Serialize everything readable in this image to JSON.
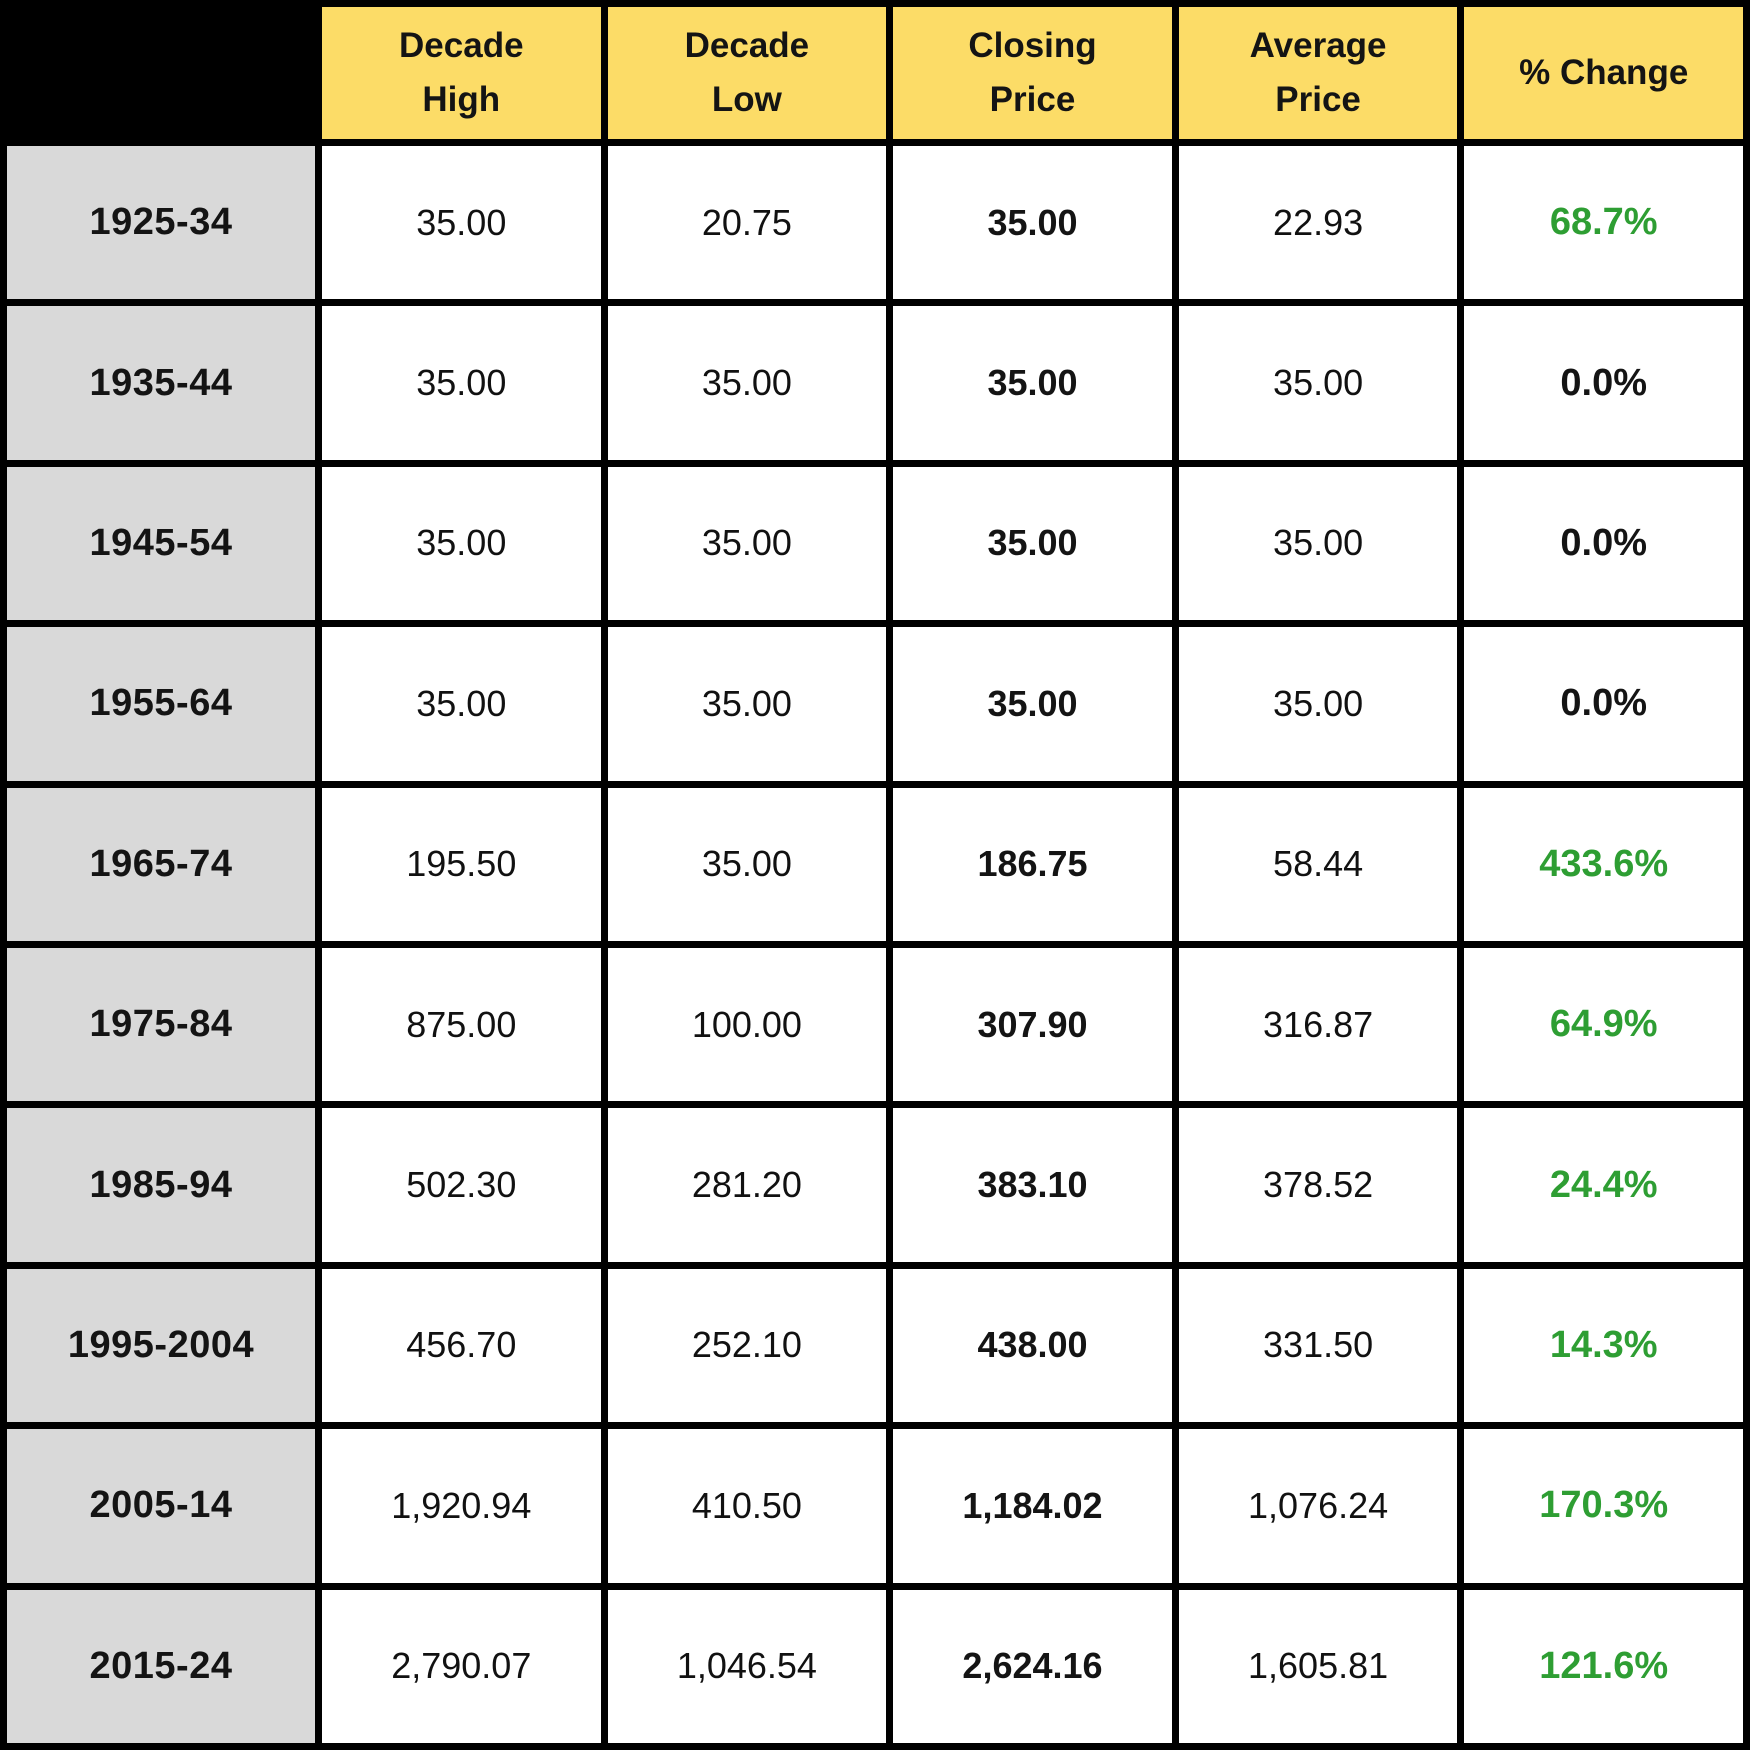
{
  "table": {
    "corner_label": "",
    "column_headers": [
      {
        "key": "decade-high",
        "label": "Decade\nHigh"
      },
      {
        "key": "decade-low",
        "label": "Decade\nLow"
      },
      {
        "key": "closing-price",
        "label": "Closing\nPrice"
      },
      {
        "key": "average-price",
        "label": "Average\nPrice"
      },
      {
        "key": "pct-change",
        "label": "% Change"
      }
    ],
    "rows": [
      {
        "label": "1925-34",
        "decade_high": "35.00",
        "decade_low": "20.75",
        "closing_price": "35.00",
        "average_price": "22.93",
        "pct_change": "68.7%",
        "pct_positive": true
      },
      {
        "label": "1935-44",
        "decade_high": "35.00",
        "decade_low": "35.00",
        "closing_price": "35.00",
        "average_price": "35.00",
        "pct_change": "0.0%",
        "pct_positive": false
      },
      {
        "label": "1945-54",
        "decade_high": "35.00",
        "decade_low": "35.00",
        "closing_price": "35.00",
        "average_price": "35.00",
        "pct_change": "0.0%",
        "pct_positive": false
      },
      {
        "label": "1955-64",
        "decade_high": "35.00",
        "decade_low": "35.00",
        "closing_price": "35.00",
        "average_price": "35.00",
        "pct_change": "0.0%",
        "pct_positive": false
      },
      {
        "label": "1965-74",
        "decade_high": "195.50",
        "decade_low": "35.00",
        "closing_price": "186.75",
        "average_price": "58.44",
        "pct_change": "433.6%",
        "pct_positive": true
      },
      {
        "label": "1975-84",
        "decade_high": "875.00",
        "decade_low": "100.00",
        "closing_price": "307.90",
        "average_price": "316.87",
        "pct_change": "64.9%",
        "pct_positive": true
      },
      {
        "label": "1985-94",
        "decade_high": "502.30",
        "decade_low": "281.20",
        "closing_price": "383.10",
        "average_price": "378.52",
        "pct_change": "24.4%",
        "pct_positive": true
      },
      {
        "label": "1995-2004",
        "decade_high": "456.70",
        "decade_low": "252.10",
        "closing_price": "438.00",
        "average_price": "331.50",
        "pct_change": "14.3%",
        "pct_positive": true
      },
      {
        "label": "2005-14",
        "decade_high": "1,920.94",
        "decade_low": "410.50",
        "closing_price": "1,184.02",
        "average_price": "1,076.24",
        "pct_change": "170.3%",
        "pct_positive": true
      },
      {
        "label": "2015-24",
        "decade_high": "2,790.07",
        "decade_low": "1,046.54",
        "closing_price": "2,624.16",
        "average_price": "1,605.81",
        "pct_change": "121.6%",
        "pct_positive": true
      }
    ]
  },
  "colors": {
    "header_bg": "#FCDC67",
    "row_label_bg": "#D9D9D9",
    "cell_bg": "#FFFFFF",
    "border": "#000000",
    "positive_green": "#2E9E33",
    "text_black": "#141414"
  },
  "chart_data": {
    "type": "table",
    "title": "Price by decade: high, low, closing, average and percent change",
    "categories": [
      "1925-34",
      "1935-44",
      "1945-54",
      "1955-64",
      "1965-74",
      "1975-84",
      "1985-94",
      "1995-2004",
      "2005-14",
      "2015-24"
    ],
    "series": [
      {
        "name": "Decade High",
        "values": [
          35.0,
          35.0,
          35.0,
          35.0,
          195.5,
          875.0,
          502.3,
          456.7,
          1920.94,
          2790.07
        ]
      },
      {
        "name": "Decade Low",
        "values": [
          20.75,
          35.0,
          35.0,
          35.0,
          35.0,
          100.0,
          281.2,
          252.1,
          410.5,
          1046.54
        ]
      },
      {
        "name": "Closing Price",
        "values": [
          35.0,
          35.0,
          35.0,
          35.0,
          186.75,
          307.9,
          383.1,
          438.0,
          1184.02,
          2624.16
        ]
      },
      {
        "name": "Average Price",
        "values": [
          22.93,
          35.0,
          35.0,
          35.0,
          58.44,
          316.87,
          378.52,
          331.5,
          1076.24,
          1605.81
        ]
      },
      {
        "name": "% Change",
        "values": [
          68.7,
          0.0,
          0.0,
          0.0,
          433.6,
          64.9,
          24.4,
          14.3,
          170.3,
          121.6
        ]
      }
    ],
    "layout": {
      "grid": "black 7px rules",
      "header_fill": "#FCDC67",
      "row_label_fill": "#D9D9D9",
      "positive_pct_color": "#2E9E33",
      "zero_pct_color": "#141414"
    }
  }
}
